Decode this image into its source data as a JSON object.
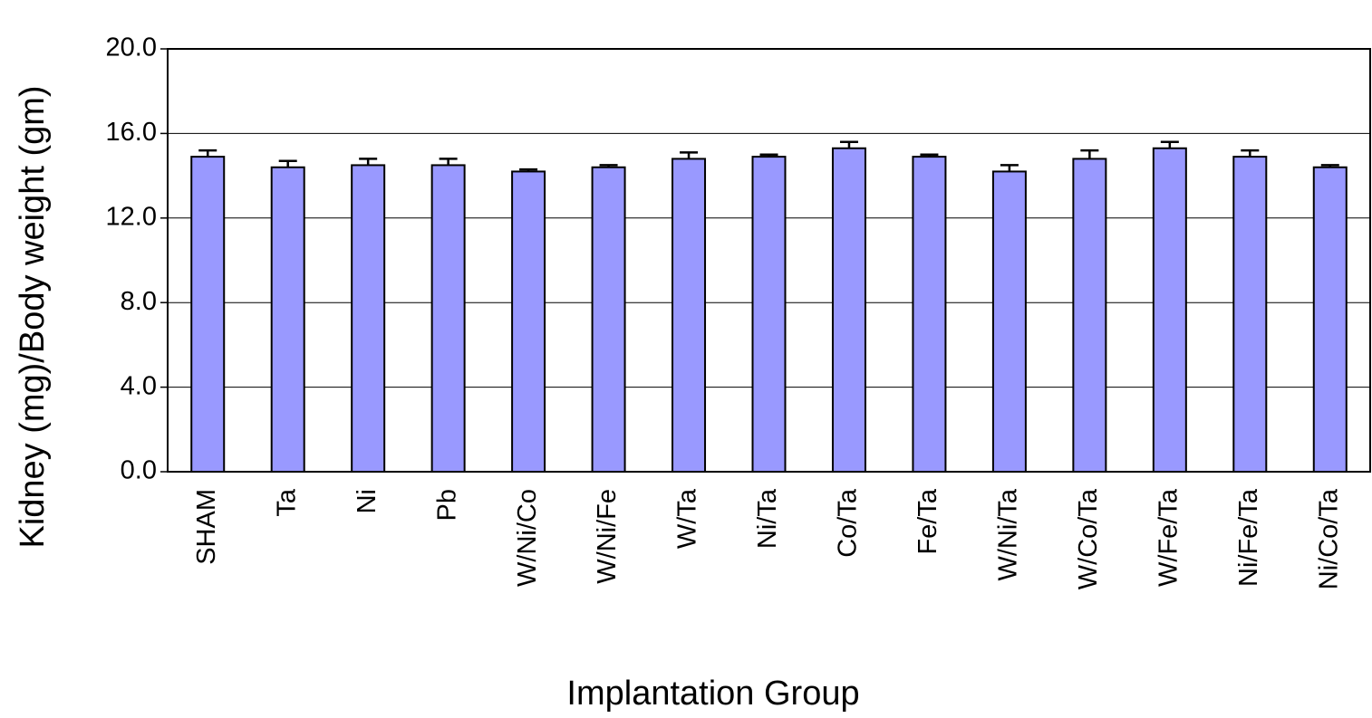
{
  "chart_data": {
    "type": "bar",
    "x_label": "Implantation Group",
    "y_label": "Kidney (mg)/Body weight (gm)",
    "categories": [
      "SHAM",
      "Ta",
      "Ni",
      "Pb",
      "W/Ni/Co",
      "W/Ni/Fe",
      "W/Ta",
      "Ni/Ta",
      "Co/Ta",
      "Fe/Ta",
      "W/Ni/Ta",
      "W/Co/Ta",
      "W/Fe/Ta",
      "Ni/Fe/Ta",
      "Ni/Co/Ta"
    ],
    "values": [
      14.9,
      14.4,
      14.5,
      14.5,
      14.2,
      14.4,
      14.8,
      14.9,
      15.3,
      14.9,
      14.2,
      14.8,
      15.3,
      14.9,
      14.4
    ],
    "errors": [
      0.3,
      0.3,
      0.3,
      0.3,
      0.1,
      0.1,
      0.3,
      0.1,
      0.3,
      0.1,
      0.3,
      0.4,
      0.3,
      0.3,
      0.1
    ],
    "color": "#9999ff",
    "ylim": [
      0,
      20
    ],
    "yticks": [
      {
        "value": 0,
        "label": "0.0"
      },
      {
        "value": 4,
        "label": "4.0"
      },
      {
        "value": 8,
        "label": "8.0"
      },
      {
        "value": 12,
        "label": "12.0"
      },
      {
        "value": 16,
        "label": "16.0"
      },
      {
        "value": 20,
        "label": "20.0"
      }
    ],
    "grid": true
  }
}
